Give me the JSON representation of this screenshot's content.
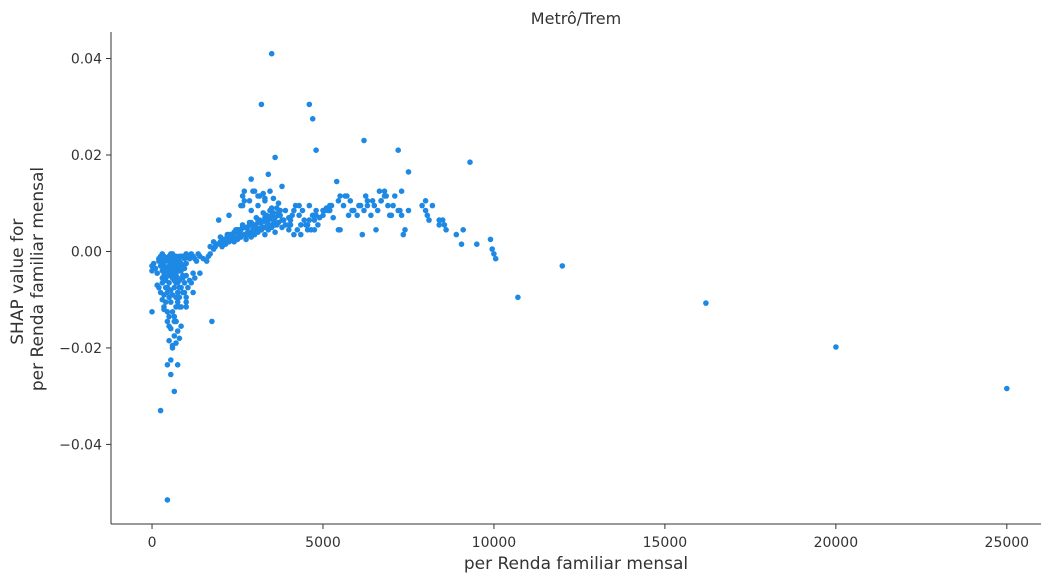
{
  "chart_data": {
    "type": "scatter",
    "title": "Metrô/Trem",
    "xlabel": "per Renda familiar mensal",
    "ylabel": [
      "SHAP value for",
      "per Renda familiar mensal"
    ],
    "xlim": [
      -1200,
      26000
    ],
    "ylim": [
      -0.0565,
      0.0455
    ],
    "xticks": [
      0,
      5000,
      10000,
      15000,
      20000,
      25000
    ],
    "xtick_labels": [
      "0",
      "5000",
      "10000",
      "15000",
      "20000",
      "25000"
    ],
    "yticks": [
      0.04,
      0.02,
      0.0,
      -0.02,
      -0.04
    ],
    "ytick_labels": [
      "0.04",
      "0.02",
      "0.00",
      "−0.02",
      "−0.04"
    ],
    "grid": false,
    "point_color": "#1e88e5",
    "axis_color": "#333333",
    "x": [
      0,
      0,
      0,
      50,
      100,
      150,
      200,
      200,
      250,
      250,
      300,
      300,
      300,
      300,
      350,
      350,
      350,
      400,
      400,
      400,
      450,
      450,
      500,
      500,
      500,
      500,
      550,
      550,
      550,
      600,
      600,
      600,
      600,
      600,
      650,
      650,
      650,
      650,
      700,
      700,
      700,
      700,
      750,
      750,
      750,
      800,
      800,
      800,
      800,
      850,
      850,
      850,
      900,
      900,
      900,
      950,
      950,
      1000,
      1000,
      1050,
      1100,
      1150,
      1200,
      1250,
      1300,
      1350,
      1400,
      1500,
      1600,
      1650,
      1700,
      150,
      200,
      250,
      300,
      350,
      350,
      400,
      400,
      450,
      450,
      500,
      500,
      550,
      550,
      600,
      650,
      700,
      700,
      750,
      750,
      800,
      850,
      900,
      950,
      1000,
      1100,
      1200,
      300,
      400,
      450,
      500,
      550,
      600,
      650,
      700,
      750,
      800,
      350,
      450,
      500,
      600,
      650,
      700,
      750,
      800,
      850,
      950,
      1050,
      1150,
      1250,
      1400,
      500,
      550,
      600,
      650,
      700,
      750,
      800,
      200,
      300,
      400,
      500,
      600,
      700,
      800,
      900,
      1000,
      450,
      550,
      650,
      750,
      850,
      550,
      700,
      600,
      650,
      800,
      250,
      450,
      1000,
      1000,
      1200,
      1750,
      1800,
      1850,
      1900,
      2000,
      2050,
      2100,
      2150,
      2200,
      2250,
      2300,
      2350,
      2400,
      2450,
      2500,
      2550,
      2600,
      2650,
      2700,
      2750,
      2800,
      2850,
      2900,
      2950,
      3000,
      3050,
      3100,
      3150,
      3200,
      3250,
      3300,
      3350,
      3400,
      3450,
      3500,
      3550,
      3600,
      3650,
      3700,
      3750,
      3800,
      3850,
      3900,
      1700,
      1800,
      1900,
      2000,
      2100,
      2200,
      2300,
      2400,
      2500,
      2600,
      2700,
      2800,
      2900,
      3000,
      3100,
      3200,
      3300,
      3400,
      3500,
      3600,
      2000,
      2100,
      2200,
      2300,
      2400,
      2500,
      2600,
      2700,
      2800,
      2900,
      3000,
      3100,
      3200,
      3300,
      3400,
      3500,
      3600,
      3700,
      2200,
      2300,
      2400,
      2500,
      2600,
      2700,
      2800,
      2900,
      3000,
      3100,
      3200,
      3300,
      3400,
      3500,
      3600,
      3700,
      3800,
      3900,
      4000,
      2050,
      2150,
      2250,
      2350,
      2450,
      2550,
      2650,
      2750,
      2850,
      2950,
      3050,
      3150,
      3250,
      3350,
      3450,
      3550,
      3650,
      3750,
      2600,
      2700,
      2900,
      3100,
      3300,
      3500,
      3700,
      2650,
      2950,
      3250,
      3550,
      1950,
      2250,
      2650,
      2850,
      3150,
      3450,
      4000,
      4000,
      4050,
      4100,
      4150,
      4200,
      4300,
      4400,
      4500,
      4600,
      4700,
      4800,
      4900,
      5000,
      5100,
      5200,
      5300,
      5500,
      5600,
      5800,
      5900,
      6000,
      6100,
      6200,
      6300,
      6400,
      6500,
      6600,
      6700,
      6800,
      6900,
      7000,
      7200,
      7300,
      7400,
      7900,
      8000,
      8100,
      8400,
      8500,
      8600,
      8900,
      9100,
      9500,
      9900,
      9950,
      10000,
      10050,
      4150,
      4250,
      4350,
      4450,
      4550,
      4650,
      4750,
      4850,
      5050,
      5250,
      5450,
      5650,
      5850,
      6050,
      6250,
      6450,
      6650,
      6850,
      7050,
      7250,
      4050,
      4350,
      4550,
      4750,
      5150,
      5450,
      5750,
      6150,
      6550,
      6950,
      7350,
      8050,
      8550,
      9050,
      4600,
      4800,
      5000,
      5200,
      5700,
      6300,
      6700,
      7100,
      7300,
      7500,
      8000,
      8200,
      8400,
      5400,
      5500,
      6800,
      3400,
      3600,
      4700,
      4300,
      3200,
      4600,
      4700,
      4800,
      6200,
      7200,
      7500,
      9300,
      3500,
      3800,
      2900,
      3100,
      2700,
      3000,
      3300,
      10700,
      12000,
      16200,
      20000,
      25000
    ],
    "y": [
      -0.003,
      -0.004,
      -0.0125,
      -0.0025,
      -0.0035,
      -0.0045,
      -0.0015,
      -0.002,
      -0.001,
      -0.003,
      -0.0005,
      -0.002,
      -0.004,
      -0.0055,
      -0.001,
      -0.003,
      -0.005,
      -0.002,
      -0.004,
      -0.006,
      -0.0015,
      -0.0035,
      -0.001,
      -0.002,
      -0.003,
      -0.005,
      -0.0005,
      -0.0025,
      -0.0045,
      -0.0005,
      -0.0015,
      -0.0025,
      -0.0035,
      -0.0055,
      -0.001,
      -0.002,
      -0.004,
      -0.006,
      -0.001,
      -0.002,
      -0.003,
      -0.005,
      -0.0015,
      -0.0035,
      -0.0055,
      -0.001,
      -0.002,
      -0.003,
      -0.004,
      -0.001,
      -0.0025,
      -0.004,
      -0.001,
      -0.003,
      -0.005,
      -0.0015,
      -0.0035,
      -0.0005,
      -0.0025,
      -0.001,
      -0.0015,
      -0.0005,
      -0.001,
      -0.0015,
      -0.002,
      -0.0005,
      -0.001,
      -0.0015,
      -0.002,
      -0.001,
      -0.0005,
      -0.007,
      -0.0075,
      -0.0085,
      -0.01,
      -0.009,
      -0.0115,
      -0.0075,
      -0.0105,
      -0.0085,
      -0.0125,
      -0.0095,
      -0.0135,
      -0.008,
      -0.0105,
      -0.009,
      -0.0075,
      -0.0095,
      -0.0115,
      -0.0065,
      -0.0085,
      -0.006,
      -0.0075,
      -0.0055,
      -0.0065,
      -0.005,
      -0.006,
      -0.0045,
      -0.0065,
      -0.0055,
      -0.0075,
      -0.0065,
      -0.0035,
      -0.0045,
      -0.0035,
      -0.0045,
      -0.0025,
      -0.0035,
      -0.012,
      -0.0145,
      -0.0155,
      -0.0125,
      -0.0135,
      -0.0145,
      -0.0105,
      -0.0095,
      -0.0115,
      -0.0085,
      -0.0075,
      -0.0065,
      -0.0055,
      -0.0045,
      -0.0185,
      -0.016,
      -0.02,
      -0.0175,
      -0.019,
      -0.0165,
      -0.018,
      -0.0015,
      -0.0025,
      -0.0035,
      -0.0045,
      -0.0055,
      -0.0065,
      -0.0075,
      -0.0085,
      -0.0095,
      -0.0235,
      -0.0255,
      -0.029,
      -0.0235,
      -0.0155,
      -0.0225,
      -0.0145,
      -0.0195,
      -0.0145,
      -0.0115,
      -0.033,
      -0.0515,
      -0.0115,
      -0.0105,
      -0.0085,
      -0.0145,
      0.0005,
      0.001,
      0.0015,
      0.002,
      0.001,
      0.0025,
      0.0015,
      0.003,
      0.002,
      0.0025,
      0.0035,
      0.002,
      0.004,
      0.0025,
      0.0045,
      0.003,
      0.005,
      0.0035,
      0.0025,
      0.004,
      0.0055,
      0.003,
      0.0045,
      0.0035,
      0.005,
      0.004,
      0.006,
      0.0045,
      0.005,
      0.0035,
      0.006,
      0.0045,
      0.007,
      0.005,
      0.0065,
      0.004,
      0.0055,
      0.006,
      0.0075,
      0.005,
      0.0065,
      0.0055,
      0.001,
      0.002,
      0.0015,
      0.003,
      0.002,
      0.0035,
      0.0025,
      0.004,
      0.003,
      0.0045,
      0.0035,
      0.005,
      0.004,
      0.0055,
      0.0045,
      0.006,
      0.005,
      0.0065,
      0.0055,
      0.007,
      0.0015,
      0.0025,
      0.002,
      0.003,
      0.0025,
      0.004,
      0.003,
      0.005,
      0.0035,
      0.0055,
      0.004,
      0.006,
      0.0045,
      0.0065,
      0.005,
      0.007,
      0.0055,
      0.0075,
      0.003,
      0.0035,
      0.0025,
      0.0045,
      0.0035,
      0.005,
      0.004,
      0.006,
      0.0045,
      0.0065,
      0.005,
      0.007,
      0.0055,
      0.0075,
      0.006,
      0.008,
      0.0065,
      0.0085,
      0.007,
      0.0015,
      0.002,
      0.0035,
      0.003,
      0.0045,
      0.004,
      0.0055,
      0.005,
      0.006,
      0.0055,
      0.007,
      0.0065,
      0.008,
      0.0075,
      0.0085,
      0.008,
      0.009,
      0.0085,
      0.0095,
      0.0105,
      0.0085,
      0.0095,
      0.011,
      0.009,
      0.01,
      0.0115,
      0.0125,
      0.012,
      0.011,
      0.0065,
      0.0075,
      0.0095,
      0.0105,
      0.0115,
      0.0125,
      0.0045,
      0.0055,
      0.0065,
      0.0075,
      0.0085,
      0.0095,
      0.0075,
      0.0085,
      0.0055,
      0.0065,
      0.0075,
      0.0085,
      0.007,
      0.0075,
      0.009,
      0.0085,
      0.007,
      0.0045,
      0.0095,
      0.0105,
      0.0085,
      0.0075,
      0.0095,
      0.0085,
      0.0105,
      0.0075,
      0.0095,
      0.0085,
      0.0105,
      0.0115,
      0.0095,
      0.0075,
      0.0085,
      0.0075,
      0.0045,
      0.0095,
      0.0085,
      0.0065,
      0.0055,
      0.0065,
      0.0045,
      0.0035,
      0.0045,
      0.0015,
      0.0025,
      0.0005,
      -0.0005,
      -0.0015,
      0.0035,
      0.0045,
      0.0055,
      0.0065,
      0.0055,
      0.0045,
      0.0065,
      0.0055,
      0.0085,
      0.0095,
      0.0105,
      0.0115,
      0.0085,
      0.0095,
      0.0115,
      0.0105,
      0.0125,
      0.0115,
      0.0095,
      0.0085,
      0.0055,
      0.0035,
      0.0045,
      0.0045,
      0.0085,
      0.0045,
      0.0075,
      0.0035,
      0.0045,
      0.0075,
      0.0035,
      0.0075,
      0.0055,
      0.0015,
      0.0095,
      0.0075,
      0.0085,
      0.0095,
      0.0115,
      0.0095,
      0.0105,
      0.0115,
      0.0125,
      0.0085,
      0.0105,
      0.0095,
      0.0065,
      0.0145,
      0.0115,
      0.0125,
      0.016,
      0.0195,
      0.0075,
      0.0095,
      0.0305,
      0.0305,
      0.0275,
      0.021,
      0.023,
      0.021,
      0.0165,
      0.0185,
      0.041,
      0.0135,
      0.015,
      0.0115,
      0.0125,
      0.0125,
      0.0105,
      -0.0095,
      -0.003,
      -0.0107,
      -0.0198,
      -0.0284
    ]
  }
}
